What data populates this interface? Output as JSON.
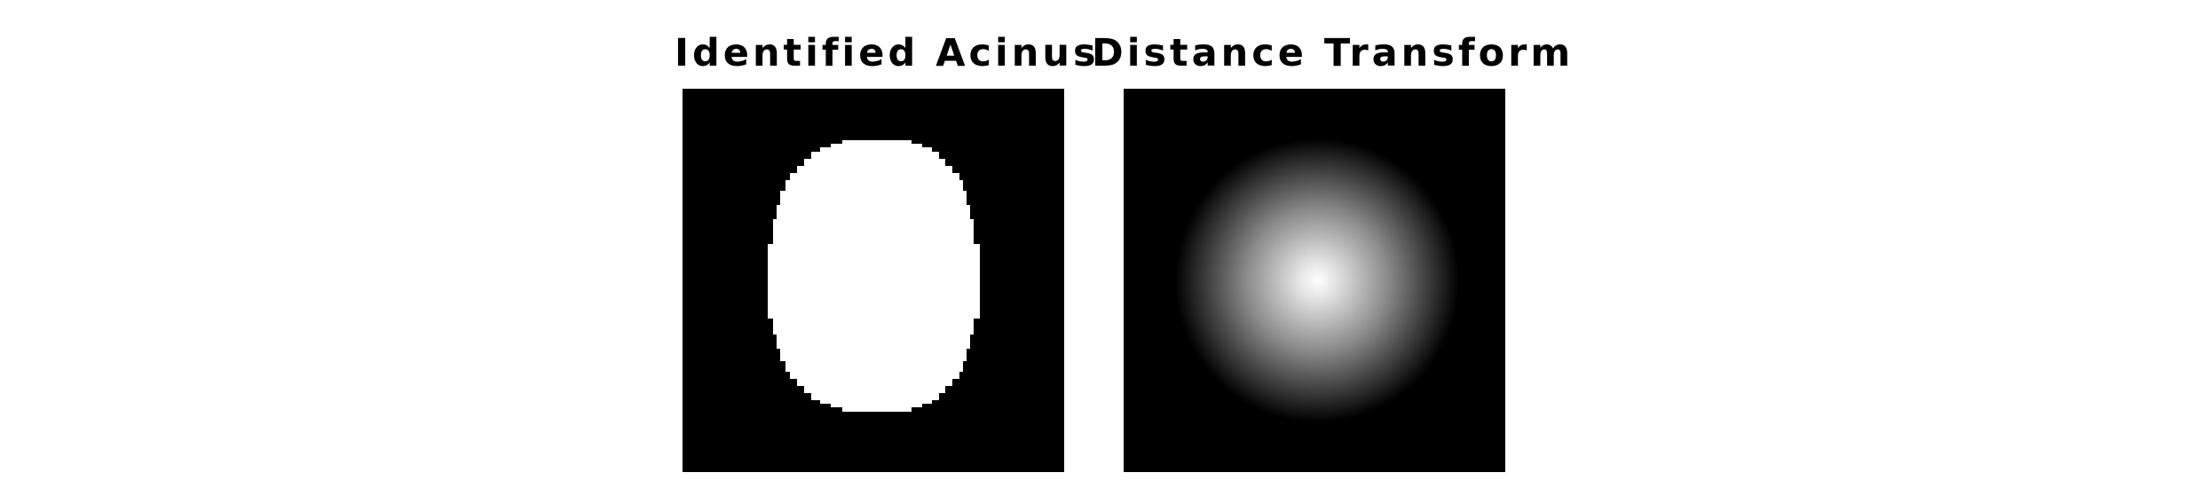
{
  "panels": [
    {
      "title": "Identified Acinus",
      "content": "binary-mask",
      "mask_color": "#ffffff",
      "background_color": "#000000"
    },
    {
      "title": "Distance Transform",
      "content": "radial-gradient",
      "center_color": "#ffffff",
      "edge_color": "#000000",
      "background_color": "#000000"
    }
  ]
}
